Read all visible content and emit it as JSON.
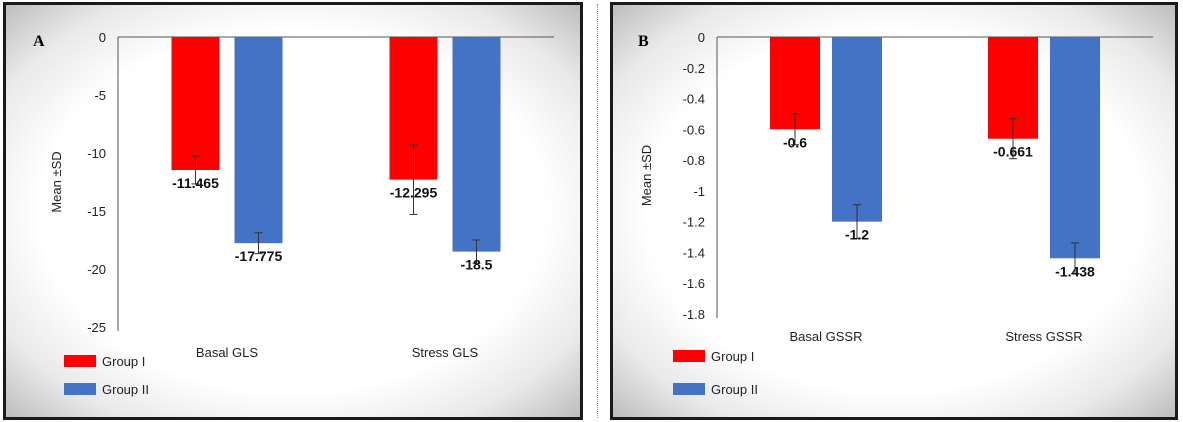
{
  "chart_data": [
    {
      "type": "bar",
      "panel_label": "A",
      "categories": [
        "Basal GLS",
        "Stress GLS"
      ],
      "ylabel": "Mean ±SD",
      "ylim": [
        -25,
        0
      ],
      "yticks": [
        0,
        -5,
        -10,
        -15,
        -20,
        -25
      ],
      "ytick_labels": [
        "0",
        "-5",
        "-10",
        "-15",
        "-20",
        "-25"
      ],
      "grid": false,
      "legend_position": "bottom-left",
      "series": [
        {
          "name": "Group I",
          "color": "#ff0000",
          "values": [
            -11.465,
            -12.295
          ],
          "errors": [
            1.2,
            3.0
          ],
          "labels": [
            "-11.465",
            "-12.295"
          ]
        },
        {
          "name": "Group II",
          "color": "#4472c4",
          "values": [
            -17.775,
            -18.5
          ],
          "errors": [
            0.9,
            1.0
          ],
          "labels": [
            "-17.775",
            "-18.5"
          ]
        }
      ]
    },
    {
      "type": "bar",
      "panel_label": "B",
      "categories": [
        "Basal GSSR",
        "Stress GSSR"
      ],
      "ylabel": "Mean ±SD",
      "ylim": [
        -1.8,
        0
      ],
      "yticks": [
        0,
        -0.2,
        -0.4,
        -0.6,
        -0.8,
        -1,
        -1.2,
        -1.4,
        -1.6,
        -1.8
      ],
      "ytick_labels": [
        "0",
        "-0.2",
        "-0.4",
        "-0.6",
        "-0.8",
        "-1",
        "-1.2",
        "-1.4",
        "-1.6",
        "-1.8"
      ],
      "grid": false,
      "legend_position": "bottom-left",
      "series": [
        {
          "name": "Group I",
          "color": "#ff0000",
          "values": [
            -0.6,
            -0.661
          ],
          "errors": [
            0.1,
            0.13
          ],
          "labels": [
            "-0.6",
            "-0.661"
          ]
        },
        {
          "name": "Group II",
          "color": "#4472c4",
          "values": [
            -1.2,
            -1.438
          ],
          "errors": [
            0.11,
            0.1
          ],
          "labels": [
            "-1.2",
            "-1.438"
          ]
        }
      ]
    }
  ]
}
